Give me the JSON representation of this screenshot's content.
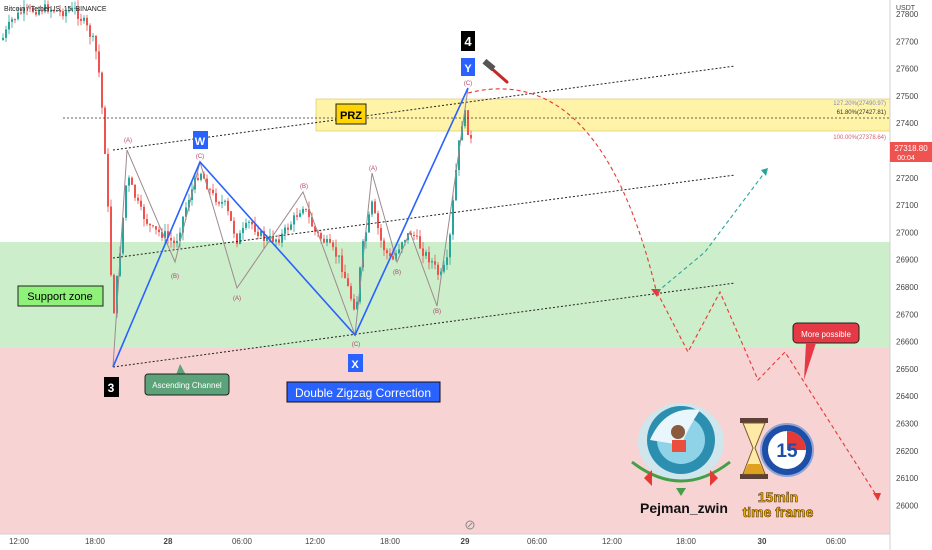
{
  "header": {
    "title": "Bitcoin / TetherUS, 15, BINANCE",
    "currency": "USDT"
  },
  "chart_data": {
    "type": "candlestick",
    "symbol": "Bitcoin / TetherUS",
    "interval": "15",
    "exchange": "BINANCE",
    "y_ticks": [
      27800,
      27700,
      27600,
      27500,
      27400,
      27300,
      27200,
      27100,
      27000,
      26900,
      26800,
      26700,
      26600,
      26500,
      26400,
      26300,
      26200,
      26100,
      26000
    ],
    "ylim": [
      25960,
      27830
    ],
    "x_ticks": [
      "12:00",
      "18:00",
      "28",
      "06:00",
      "12:00",
      "18:00",
      "29",
      "06:00",
      "12:00",
      "18:00",
      "30",
      "06:00"
    ],
    "last_price": "27318.80",
    "countdown": "00:04",
    "zones": [
      {
        "name": "Support zone",
        "from": 26590,
        "to": 26970
      },
      {
        "name": "PRZ",
        "from": 27380,
        "to": 27490
      }
    ],
    "fib_levels": [
      {
        "label": "127.20%(27490.97)",
        "value": 27490.97
      },
      {
        "label": "61.80%(27427.81)",
        "value": 27427.81
      },
      {
        "label": "100.00%(27378.64)",
        "value": 27378.64
      }
    ],
    "wave_labels": [
      "3",
      "W",
      "X",
      "Y",
      "4"
    ],
    "subwave_labels": [
      "(A)",
      "(B)",
      "(C)"
    ],
    "annotations": [
      "Ascending Channel",
      "Double Zigzag Correction",
      "More possible"
    ]
  },
  "branding": {
    "author": "Pejman_zwin",
    "timeframe_badge": "15",
    "timeframe_text": "15min",
    "timeframe_text2": "time frame"
  },
  "colors": {
    "support": "#cdeeca",
    "bearish_zone": "#f7d3d3",
    "prz_fill": "#fff3a8",
    "up": "#26a69a",
    "down": "#ef5350",
    "wave": "#2962ff",
    "prz_label": "#ffd400"
  }
}
